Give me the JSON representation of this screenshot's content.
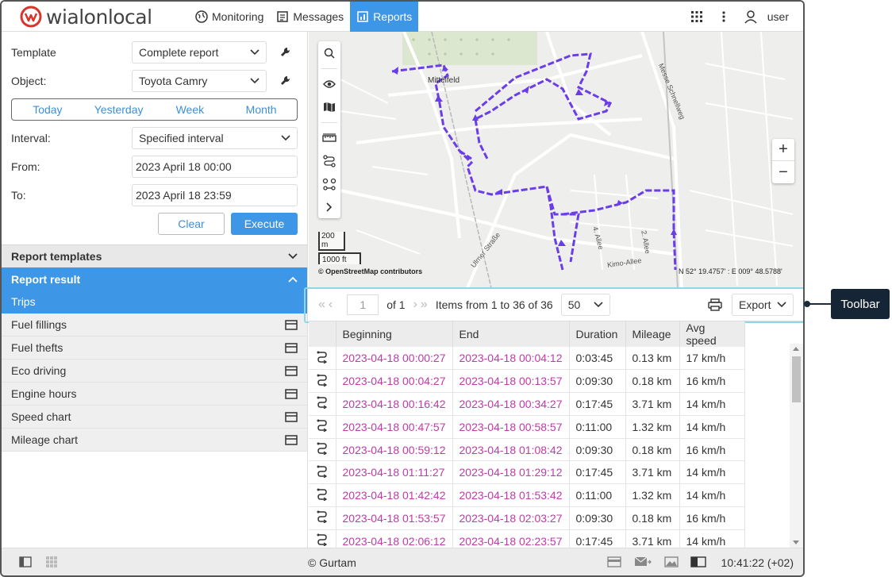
{
  "header": {
    "logo": {
      "part1": "wialon",
      "part2": "local"
    },
    "nav": [
      {
        "label": "Monitoring",
        "icon": "globe-icon"
      },
      {
        "label": "Messages",
        "icon": "messages-icon"
      },
      {
        "label": "Reports",
        "icon": "reports-icon",
        "active": true
      }
    ],
    "user": "user"
  },
  "form": {
    "template_label": "Template",
    "template_value": "Complete report",
    "object_label": "Object:",
    "object_value": "Toyota Camry",
    "periods": [
      "Today",
      "Yesterday",
      "Week",
      "Month"
    ],
    "interval_label": "Interval:",
    "interval_value": "Specified interval",
    "from_label": "From:",
    "from_value": "2023 April 18 00:00",
    "to_label": "To:",
    "to_value": "2023 April 18 23:59",
    "clear": "Clear",
    "execute": "Execute"
  },
  "accordion": {
    "templates": "Report templates",
    "result": "Report result",
    "items": [
      "Trips",
      "Fuel fillings",
      "Fuel thefts",
      "Eco driving",
      "Engine hours",
      "Speed chart",
      "Mileage chart"
    ]
  },
  "map": {
    "place": "Mittelfeld",
    "scale_m": "200 m",
    "scale_ft": "1000 ft",
    "attribution": "© OpenStreetMap contributors",
    "coords": "N 52° 19.4757' : E 009° 48.5788'",
    "streets": [
      "Messe Schnellweg",
      "Ulmer Straße",
      "4. Allee",
      "2. Allee",
      "Kimo-Allee"
    ]
  },
  "toolbar": {
    "page": "1",
    "of": "of 1",
    "items": "Items from 1 to 36 of 36",
    "per_page": "50",
    "export": "Export"
  },
  "table": {
    "headers": [
      "Beginning",
      "End",
      "Duration",
      "Mileage",
      "Avg speed"
    ],
    "rows": [
      [
        "2023-04-18 00:00:27",
        "2023-04-18 00:04:12",
        "0:03:45",
        "0.13 km",
        "17 km/h"
      ],
      [
        "2023-04-18 00:04:27",
        "2023-04-18 00:13:57",
        "0:09:30",
        "0.18 km",
        "16 km/h"
      ],
      [
        "2023-04-18 00:16:42",
        "2023-04-18 00:34:27",
        "0:17:45",
        "3.71 km",
        "14 km/h"
      ],
      [
        "2023-04-18 00:47:57",
        "2023-04-18 00:58:57",
        "0:11:00",
        "1.32 km",
        "14 km/h"
      ],
      [
        "2023-04-18 00:59:12",
        "2023-04-18 01:08:42",
        "0:09:30",
        "0.18 km",
        "16 km/h"
      ],
      [
        "2023-04-18 01:11:27",
        "2023-04-18 01:29:12",
        "0:17:45",
        "3.71 km",
        "14 km/h"
      ],
      [
        "2023-04-18 01:42:42",
        "2023-04-18 01:53:42",
        "0:11:00",
        "1.32 km",
        "14 km/h"
      ],
      [
        "2023-04-18 01:53:57",
        "2023-04-18 02:03:27",
        "0:09:30",
        "0.18 km",
        "16 km/h"
      ],
      [
        "2023-04-18 02:06:12",
        "2023-04-18 02:23:57",
        "0:17:45",
        "3.71 km",
        "14 km/h"
      ]
    ]
  },
  "footer": {
    "copyright": "© Gurtam",
    "time": "10:41:22 (+02)"
  },
  "callout": "Toolbar",
  "colors": {
    "accent": "#3d96e6",
    "time_link": "#c03aa8",
    "track": "#6a3de8"
  }
}
